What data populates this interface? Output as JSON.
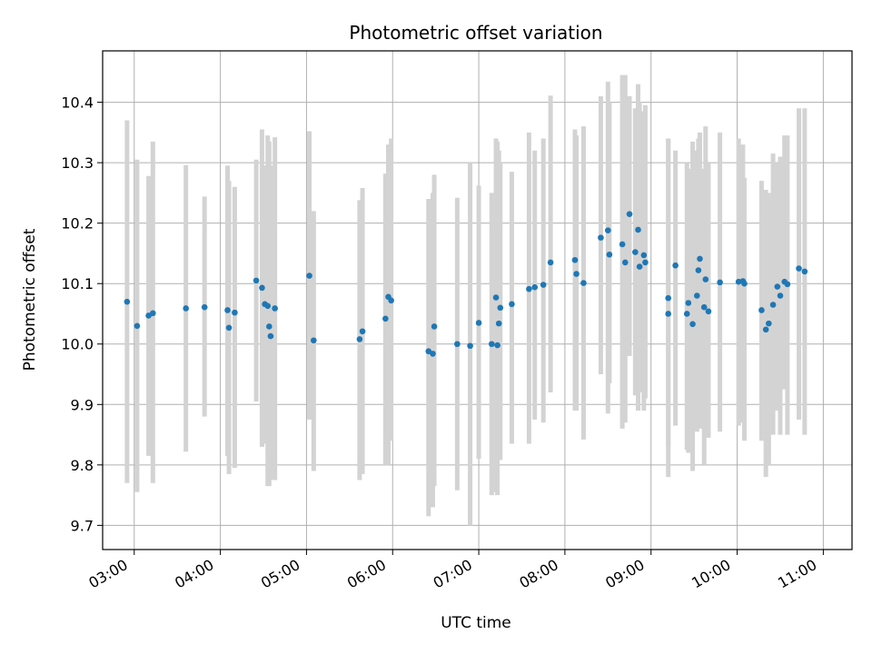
{
  "chart_data": {
    "type": "scatter",
    "title": "Photometric offset variation",
    "xlabel": "UTC time",
    "ylabel": "Photometric offset",
    "xlim": [
      "02:38",
      "11:20"
    ],
    "ylim": [
      9.66,
      10.485
    ],
    "x_ticks": [
      "03:00",
      "04:00",
      "05:00",
      "06:00",
      "07:00",
      "08:00",
      "09:00",
      "10:00",
      "11:00"
    ],
    "y_ticks": [
      "9.7",
      "9.8",
      "9.9",
      "10.0",
      "10.1",
      "10.2",
      "10.3",
      "10.4"
    ],
    "grid": true,
    "marker_color": "#1f77b4",
    "errorbar_color": "#d3d3d3",
    "series": [
      {
        "x": [
          "02:55",
          "03:02",
          "03:10",
          "03:13",
          "03:36",
          "03:49",
          "04:05",
          "04:06",
          "04:10",
          "04:25",
          "04:29",
          "04:31",
          "04:33",
          "04:34",
          "04:35",
          "04:38",
          "05:02",
          "05:05",
          "05:37",
          "05:39",
          "05:55",
          "05:57",
          "05:59",
          "06:25",
          "06:28",
          "06:29",
          "06:45",
          "06:54",
          "07:00",
          "07:09",
          "07:12",
          "07:13",
          "07:14",
          "07:15",
          "07:23",
          "07:35",
          "07:39",
          "07:45",
          "07:50",
          "08:07",
          "08:08",
          "08:13",
          "08:25",
          "08:30",
          "08:31",
          "08:40",
          "08:42",
          "08:45",
          "08:49",
          "08:51",
          "08:52",
          "08:55",
          "08:56",
          "09:12",
          "09:12",
          "09:17",
          "09:25",
          "09:26",
          "09:29",
          "09:32",
          "09:33",
          "09:34",
          "09:37",
          "09:38",
          "09:40",
          "09:48",
          "10:01",
          "10:04",
          "10:05",
          "10:17",
          "10:20",
          "10:22",
          "10:25",
          "10:28",
          "10:30",
          "10:33",
          "10:35",
          "10:43",
          "10:47"
        ],
        "y": [
          10.07,
          10.03,
          10.047,
          10.051,
          10.059,
          10.061,
          10.056,
          10.027,
          10.052,
          10.105,
          10.093,
          10.066,
          10.063,
          10.029,
          10.013,
          10.059,
          10.113,
          10.006,
          10.008,
          10.021,
          10.042,
          10.078,
          10.072,
          9.988,
          9.984,
          10.029,
          10.0,
          9.997,
          10.035,
          10.0,
          10.077,
          9.998,
          10.034,
          10.06,
          10.066,
          10.091,
          10.094,
          10.098,
          10.135,
          10.139,
          10.116,
          10.101,
          10.176,
          10.188,
          10.148,
          10.165,
          10.135,
          10.215,
          10.152,
          10.189,
          10.128,
          10.147,
          10.135,
          10.05,
          10.076,
          10.13,
          10.05,
          10.068,
          10.033,
          10.08,
          10.122,
          10.141,
          10.061,
          10.107,
          10.054,
          10.102,
          10.103,
          10.104,
          10.1,
          10.056,
          10.024,
          10.034,
          10.065,
          10.095,
          10.08,
          10.103,
          10.099,
          10.125,
          10.12
        ],
        "y_low": [
          9.77,
          9.755,
          9.815,
          9.77,
          9.822,
          9.88,
          9.815,
          9.785,
          9.795,
          9.905,
          9.83,
          9.835,
          9.765,
          9.765,
          9.775,
          9.775,
          9.875,
          9.79,
          9.775,
          9.785,
          9.8,
          9.8,
          9.84,
          9.715,
          9.73,
          9.765,
          9.758,
          9.7,
          9.81,
          9.75,
          9.755,
          9.75,
          9.81,
          9.808,
          9.835,
          9.835,
          9.875,
          9.87,
          9.92,
          9.89,
          9.89,
          9.842,
          9.95,
          9.885,
          9.935,
          9.86,
          9.87,
          9.98,
          9.915,
          9.89,
          9.92,
          9.89,
          9.91,
          9.78,
          9.83,
          9.865,
          9.825,
          9.82,
          9.79,
          9.855,
          9.88,
          9.86,
          9.8,
          9.875,
          9.845,
          9.855,
          9.865,
          9.87,
          9.84,
          9.84,
          9.78,
          9.8,
          9.85,
          9.89,
          9.85,
          9.925,
          9.85,
          9.875,
          9.85
        ],
        "y_high": [
          10.37,
          10.305,
          10.278,
          10.335,
          10.296,
          10.244,
          10.295,
          10.27,
          10.26,
          10.305,
          10.355,
          10.295,
          10.345,
          10.335,
          10.295,
          10.342,
          10.352,
          10.22,
          10.238,
          10.258,
          10.282,
          10.33,
          10.34,
          10.24,
          10.25,
          10.28,
          10.242,
          10.3,
          10.262,
          10.25,
          10.34,
          10.335,
          10.32,
          10.3,
          10.285,
          10.35,
          10.32,
          10.34,
          10.411,
          10.355,
          10.345,
          10.36,
          10.41,
          10.434,
          10.4,
          10.445,
          10.445,
          10.41,
          10.39,
          10.43,
          10.4,
          10.385,
          10.395,
          10.34,
          10.34,
          10.32,
          10.3,
          10.29,
          10.335,
          10.32,
          10.34,
          10.35,
          10.29,
          10.36,
          10.3,
          10.35,
          10.34,
          10.33,
          10.275,
          10.27,
          10.255,
          10.25,
          10.315,
          10.3,
          10.31,
          10.345,
          10.345,
          10.39,
          10.39
        ]
      }
    ]
  }
}
